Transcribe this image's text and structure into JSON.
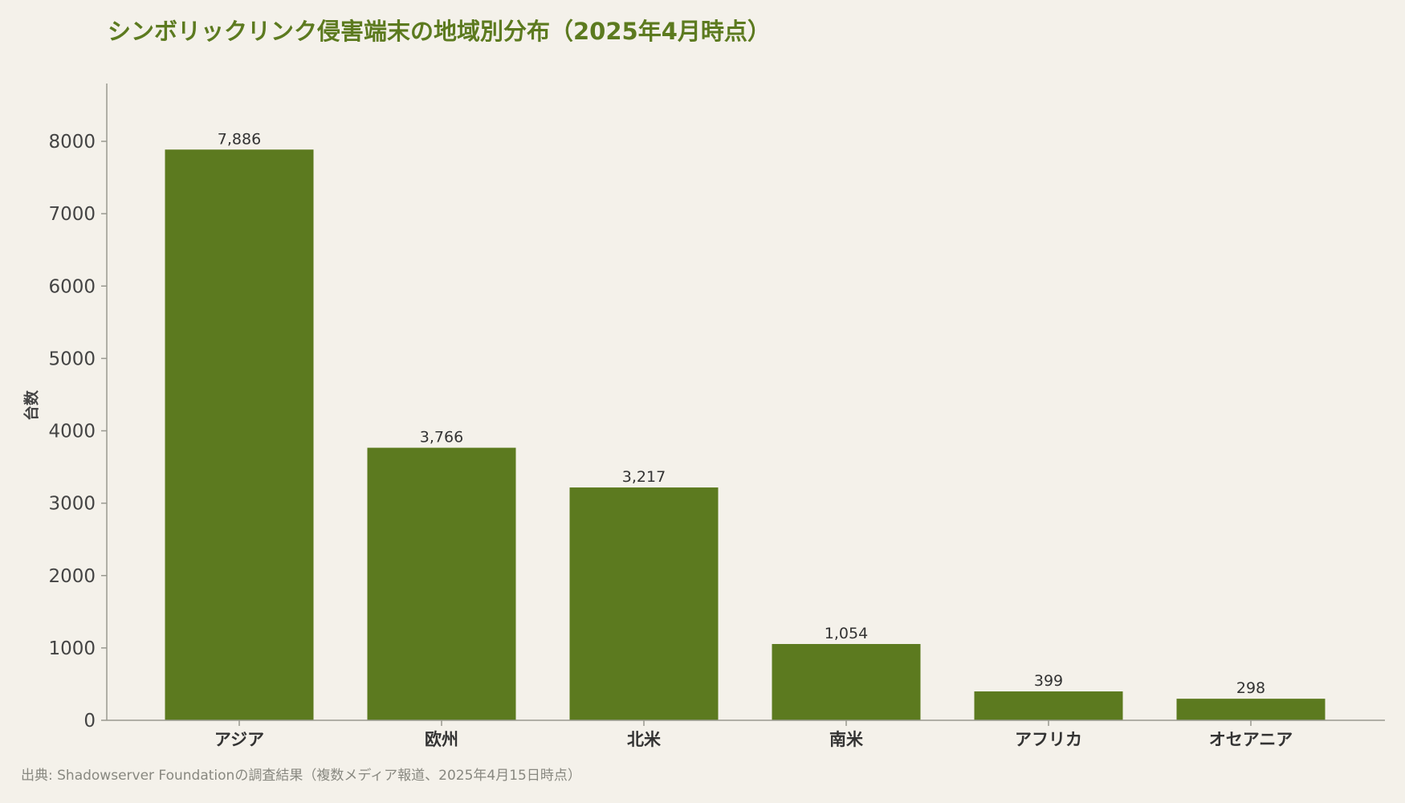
{
  "chart_data": {
    "type": "bar",
    "title": "シンボリックリンク侵害端末の地域別分布（2025年4月時点）",
    "ylabel": "台数",
    "xlabel": "",
    "categories": [
      "アジア",
      "欧州",
      "北米",
      "南米",
      "アフリカ",
      "オセアニア"
    ],
    "values": [
      7886,
      3766,
      3217,
      1054,
      399,
      298
    ],
    "value_labels": [
      "7,886",
      "3,766",
      "3,217",
      "1,054",
      "399",
      "298"
    ],
    "ylim": [
      0,
      8800
    ],
    "yticks": [
      0,
      1000,
      2000,
      3000,
      4000,
      5000,
      6000,
      7000,
      8000
    ],
    "grid": false,
    "bar_color": "#5c7a1f",
    "source": "出典: Shadowserver Foundationの調査結果（複数メディア報道、2025年4月15日時点）"
  }
}
